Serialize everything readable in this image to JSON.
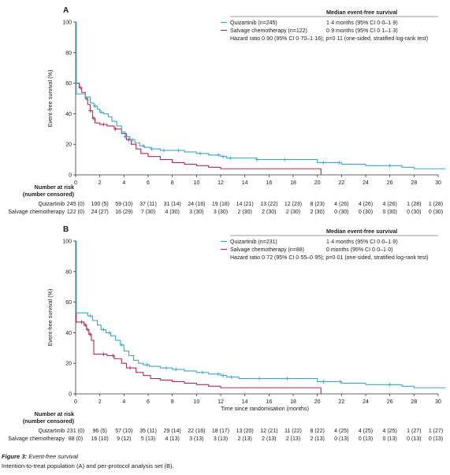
{
  "caption": {
    "figure_label": "Figure 3:",
    "figure_title": "Event-free survival",
    "subtitle": "Intention-to-treat population (A) and per-protocol analysis set (B)."
  },
  "colors": {
    "quizartinib": "#3aa7c4",
    "salvage": "#b5284f",
    "axis": "#333333"
  },
  "chart_data": [
    {
      "type": "line",
      "panel_label": "A",
      "ylabel": "Event-free survival (%)",
      "xlabel": "",
      "xlim": [
        0,
        30
      ],
      "ylim": [
        0,
        100
      ],
      "xticks": [
        0,
        2,
        4,
        6,
        8,
        10,
        12,
        14,
        16,
        18,
        20,
        22,
        24,
        26,
        28,
        30
      ],
      "yticks": [
        0,
        20,
        40,
        60,
        80,
        100
      ],
      "legend_header": "Median event-free survival",
      "legend_placement": "top-right",
      "series": [
        {
          "name": "Quizartinib (n=245)",
          "median": "1·4 months (95% CI 0·0–1·9)",
          "color": "#3aa7c4",
          "points": [
            [
              0,
              100
            ],
            [
              0.05,
              53
            ],
            [
              0.5,
              53
            ],
            [
              0.8,
              51
            ],
            [
              1.2,
              47
            ],
            [
              1.5,
              45
            ],
            [
              1.8,
              43
            ],
            [
              2.0,
              41
            ],
            [
              2.3,
              40
            ],
            [
              2.7,
              38
            ],
            [
              3.0,
              35
            ],
            [
              3.4,
              32
            ],
            [
              3.8,
              28
            ],
            [
              4.1,
              25
            ],
            [
              4.5,
              23
            ],
            [
              4.9,
              21
            ],
            [
              5.3,
              19
            ],
            [
              5.7,
              18
            ],
            [
              6.2,
              17
            ],
            [
              7.0,
              16
            ],
            [
              8.0,
              16
            ],
            [
              9.0,
              15
            ],
            [
              10.0,
              14
            ],
            [
              11.0,
              13
            ],
            [
              12.0,
              12
            ],
            [
              12.5,
              11
            ],
            [
              13.5,
              11
            ],
            [
              15.0,
              10
            ],
            [
              17.0,
              10
            ],
            [
              19.0,
              10
            ],
            [
              20.0,
              8
            ],
            [
              22.0,
              7
            ],
            [
              24.0,
              6
            ],
            [
              26.0,
              6
            ],
            [
              27.0,
              5
            ],
            [
              28.0,
              4
            ],
            [
              30.6,
              4
            ]
          ],
          "censor_x": [
            1.6,
            2.1,
            4.1,
            4.7,
            5.6,
            6.3,
            7.3,
            8.5,
            10.3,
            11.8,
            12.2,
            12.8,
            15.0,
            17.3,
            20.5,
            21.8,
            26.0
          ]
        },
        {
          "name": "Salvage chemotherapy (n=122)",
          "median": "0·9 months (95% CI 0·1–1·3)",
          "color": "#b5284f",
          "points": [
            [
              0,
              100
            ],
            [
              0.05,
              60
            ],
            [
              0.3,
              57
            ],
            [
              0.5,
              54
            ],
            [
              0.8,
              50
            ],
            [
              1.0,
              46
            ],
            [
              1.2,
              42
            ],
            [
              1.4,
              37
            ],
            [
              1.6,
              34
            ],
            [
              2.0,
              33
            ],
            [
              2.6,
              32
            ],
            [
              3.2,
              30
            ],
            [
              3.8,
              27
            ],
            [
              4.2,
              23
            ],
            [
              4.6,
              20
            ],
            [
              5.0,
              17
            ],
            [
              5.4,
              14
            ],
            [
              6.0,
              12
            ],
            [
              7.0,
              10
            ],
            [
              8.0,
              8
            ],
            [
              9.0,
              7
            ],
            [
              10.0,
              6
            ],
            [
              11.0,
              5
            ],
            [
              12.0,
              4
            ],
            [
              20.3,
              4
            ],
            [
              20.3,
              0
            ]
          ],
          "censor_x": [
            0.4,
            0.9,
            1.2,
            1.5,
            2.3,
            3.3,
            4.4
          ]
        }
      ],
      "annotation": "Hazard ratio 0·90 (95% CI 0·70–1·16); p=0·11 (one-sided, stratified log-rank test)",
      "risk_table": {
        "header": [
          "Number at risk",
          "(number censored)"
        ],
        "rows": [
          {
            "label": "Quizartinib",
            "values": [
              "245 (0)",
              "100 (5)",
              "59 (10)",
              "37 (11)",
              "31 (14)",
              "24 (16)",
              "19 (18)",
              "14 (21)",
              "13 (22)",
              "12 (23)",
              "8 (23)",
              "4 (26)",
              "4 (26)",
              "4 (26)",
              "1 (28)",
              "1 (28)"
            ]
          },
          {
            "label": "Salvage chemotherapy",
            "values": [
              "122 (0)",
              "24 (27)",
              "16 (29)",
              "7 (30)",
              "4 (30)",
              "3 (30)",
              "3 (30)",
              "2 (30)",
              "2 (30)",
              "2 (30)",
              "2 (30)",
              "0 (30)",
              "0 (30)",
              "0 (30)",
              "0 (30)",
              "0 (30)"
            ]
          }
        ]
      }
    },
    {
      "type": "line",
      "panel_label": "B",
      "ylabel": "Event-free survival (%)",
      "xlabel": "Time since randomisation (months)",
      "xlim": [
        0,
        30
      ],
      "ylim": [
        0,
        100
      ],
      "xticks": [
        0,
        2,
        4,
        6,
        8,
        10,
        12,
        14,
        16,
        18,
        20,
        22,
        24,
        26,
        28,
        30
      ],
      "yticks": [
        0,
        20,
        40,
        60,
        80,
        100
      ],
      "legend_header": "Median event-free survival",
      "legend_placement": "top-right",
      "series": [
        {
          "name": "Quizartinib (n=231)",
          "median": "1·4 months (95% CI 0·0–1·9)",
          "color": "#3aa7c4",
          "points": [
            [
              0,
              100
            ],
            [
              0.05,
              53
            ],
            [
              0.6,
              53
            ],
            [
              1.0,
              51
            ],
            [
              1.4,
              48
            ],
            [
              1.8,
              45
            ],
            [
              2.1,
              42
            ],
            [
              2.5,
              40
            ],
            [
              2.9,
              38
            ],
            [
              3.3,
              35
            ],
            [
              3.7,
              32
            ],
            [
              4.0,
              28
            ],
            [
              4.4,
              25
            ],
            [
              4.8,
              22
            ],
            [
              5.2,
              20
            ],
            [
              5.6,
              19
            ],
            [
              6.1,
              18
            ],
            [
              7.0,
              17
            ],
            [
              8.0,
              16
            ],
            [
              9.0,
              15
            ],
            [
              10.0,
              14
            ],
            [
              11.0,
              13
            ],
            [
              12.0,
              12
            ],
            [
              12.5,
              11
            ],
            [
              13.5,
              10
            ],
            [
              15.0,
              10
            ],
            [
              17.0,
              10
            ],
            [
              19.0,
              10
            ],
            [
              20.0,
              8
            ],
            [
              22.0,
              7
            ],
            [
              24.0,
              6
            ],
            [
              26.0,
              6
            ],
            [
              27.0,
              5
            ],
            [
              28.0,
              4
            ],
            [
              30.6,
              4
            ]
          ],
          "censor_x": [
            1.2,
            2.3,
            2.8,
            3.8,
            5.9,
            7.5,
            8.3,
            10.5,
            11.8,
            12.2,
            12.9,
            15.2,
            17.5,
            20.5,
            21.9,
            26.0
          ]
        },
        {
          "name": "Salvage chemotherapy (n=88)",
          "median": "0 months (95% CI 0·0–1·0)",
          "color": "#b5284f",
          "points": [
            [
              0,
              100
            ],
            [
              0.05,
              47
            ],
            [
              0.4,
              47
            ],
            [
              0.7,
              45
            ],
            [
              0.9,
              42
            ],
            [
              1.1,
              39
            ],
            [
              1.3,
              35
            ],
            [
              1.5,
              26
            ],
            [
              2.0,
              26
            ],
            [
              2.6,
              25
            ],
            [
              3.2,
              23
            ],
            [
              3.8,
              20
            ],
            [
              4.2,
              17
            ],
            [
              4.6,
              17
            ],
            [
              5.0,
              14
            ],
            [
              5.6,
              12
            ],
            [
              6.2,
              10
            ],
            [
              7.0,
              9
            ],
            [
              8.0,
              8
            ],
            [
              9.0,
              7
            ],
            [
              10.0,
              6
            ],
            [
              11.0,
              5
            ],
            [
              12.0,
              4
            ],
            [
              20.3,
              4
            ],
            [
              20.3,
              0
            ]
          ],
          "censor_x": [
            0.5,
            0.8,
            1.0,
            1.2,
            2.3,
            3.1,
            4.5
          ]
        }
      ],
      "annotation": "Hazard ratio 0·72 (95% CI 0·55–0·95); p=0·01 (one-sided, stratified log-rank test)",
      "risk_table": {
        "header": [
          "Number at risk",
          "(number censored)"
        ],
        "rows": [
          {
            "label": "Quizartinib",
            "values": [
              "231 (0)",
              "96 (5)",
              "57 (10)",
              "35 (11)",
              "29 (14)",
              "22 (16)",
              "18 (17)",
              "13 (20)",
              "12 (21)",
              "11 (22)",
              "8 (22)",
              "4 (25)",
              "4 (25)",
              "4 (25)",
              "1 (27)",
              "1 (27)"
            ]
          },
          {
            "label": "Salvage chemotherapy",
            "values": [
              "88 (0)",
              "16 (10)",
              "9 (12)",
              "5 (13)",
              "4 (13)",
              "3 (13)",
              "3 (13)",
              "2 (13)",
              "2 (13)",
              "2 (13)",
              "2 (13)",
              "0 (13)",
              "0 (13)",
              "0 (13)",
              "0 (13)",
              "0 (13)"
            ]
          }
        ]
      }
    }
  ]
}
